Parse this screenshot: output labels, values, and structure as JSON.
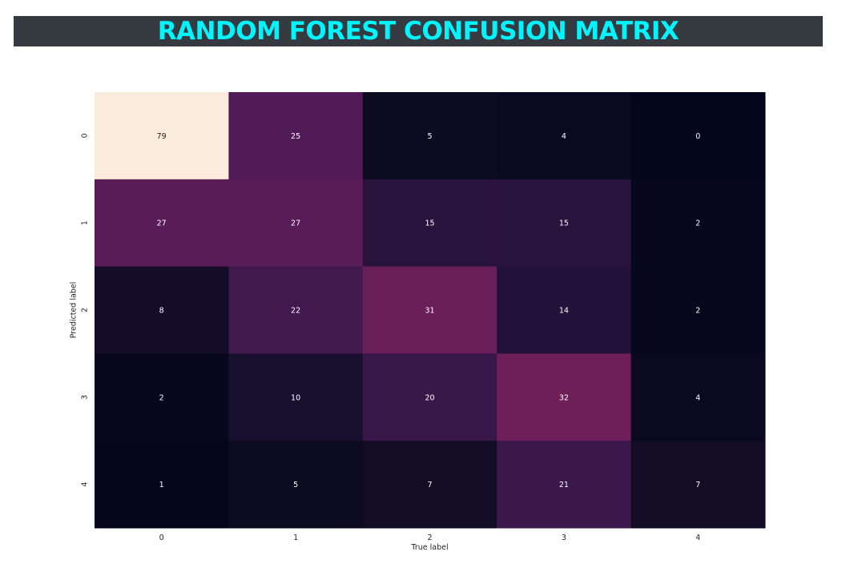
{
  "title": "RANDOM FOREST CONFUSION MATRIX",
  "colors": {
    "title_bg": "#343a40",
    "title_text": "#00f5ff",
    "colormap": "rocket"
  },
  "chart_data": {
    "type": "heatmap",
    "title": "RANDOM FOREST CONFUSION MATRIX",
    "xlabel": "True label",
    "ylabel": "Predicted label",
    "x_categories": [
      "0",
      "1",
      "2",
      "3",
      "4"
    ],
    "y_categories": [
      "0",
      "1",
      "2",
      "3",
      "4"
    ],
    "values": [
      [
        79,
        25,
        5,
        4,
        0
      ],
      [
        27,
        27,
        15,
        15,
        2
      ],
      [
        8,
        22,
        31,
        14,
        2
      ],
      [
        2,
        10,
        20,
        32,
        4
      ],
      [
        1,
        5,
        7,
        21,
        7
      ]
    ],
    "vmin": 0,
    "vmax": 79,
    "colorbar": false,
    "grid": false
  }
}
